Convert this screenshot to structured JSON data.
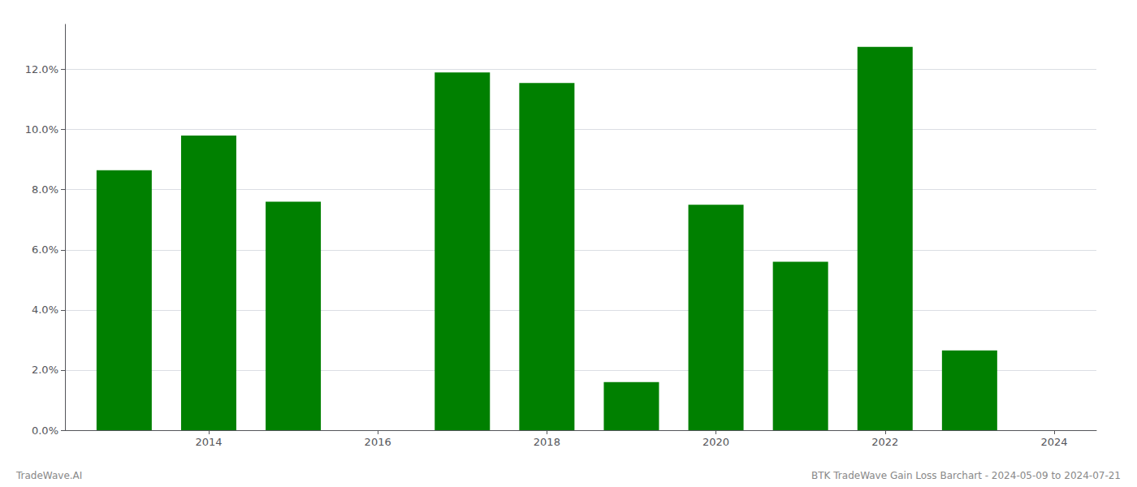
{
  "chart_data": {
    "type": "bar",
    "x": [
      2013,
      2014,
      2015,
      2016,
      2017,
      2018,
      2019,
      2020,
      2021,
      2022,
      2023
    ],
    "values": [
      0.0865,
      0.098,
      0.076,
      0.0,
      0.119,
      0.1155,
      0.016,
      0.075,
      0.056,
      0.1275,
      0.0265
    ],
    "color": "#008000",
    "xlim": [
      2012.3,
      2024.5
    ],
    "xticks": [
      2014,
      2016,
      2018,
      2020,
      2022,
      2024
    ],
    "ylim": [
      0,
      0.135
    ],
    "yticks": [
      {
        "value": 0.0,
        "label": "0.0%"
      },
      {
        "value": 0.02,
        "label": "2.0%"
      },
      {
        "value": 0.04,
        "label": "4.0%"
      },
      {
        "value": 0.06,
        "label": "6.0%"
      },
      {
        "value": 0.08,
        "label": "8.0%"
      },
      {
        "value": 0.1,
        "label": "10.0%"
      },
      {
        "value": 0.12,
        "label": "12.0%"
      }
    ],
    "grid": true,
    "annotations": [
      "TradeWave.AI",
      "BTK TradeWave Gain Loss Barchart - 2024-05-09 to 2024-07-21"
    ]
  }
}
